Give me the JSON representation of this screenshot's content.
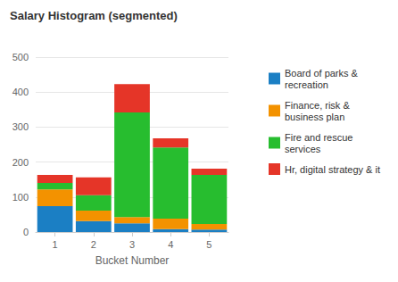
{
  "chart_data": {
    "type": "bar",
    "title": "Salary Histogram (segmented)",
    "x_label": "Bucket Number",
    "categories": [
      "1",
      "2",
      "3",
      "4",
      "5"
    ],
    "series": [
      {
        "name": "Board of parks & recreation",
        "color": "#1b7fc4",
        "values": [
          74,
          31,
          25,
          8,
          7
        ]
      },
      {
        "name": "Finance, risk & business plan",
        "color": "#f39200",
        "values": [
          48,
          30,
          18,
          30,
          16
        ]
      },
      {
        "name": "Fire and rescue services",
        "color": "#27bd2f",
        "values": [
          18,
          44,
          299,
          204,
          140
        ]
      },
      {
        "name": "Hr, digital strategy & it",
        "color": "#e53528",
        "values": [
          23,
          51,
          81,
          26,
          18
        ]
      }
    ],
    "ylim": [
      0,
      500
    ],
    "yticks": [
      0,
      100,
      200,
      300,
      400,
      500
    ],
    "grid": true,
    "stacked": true,
    "legend": "right"
  }
}
